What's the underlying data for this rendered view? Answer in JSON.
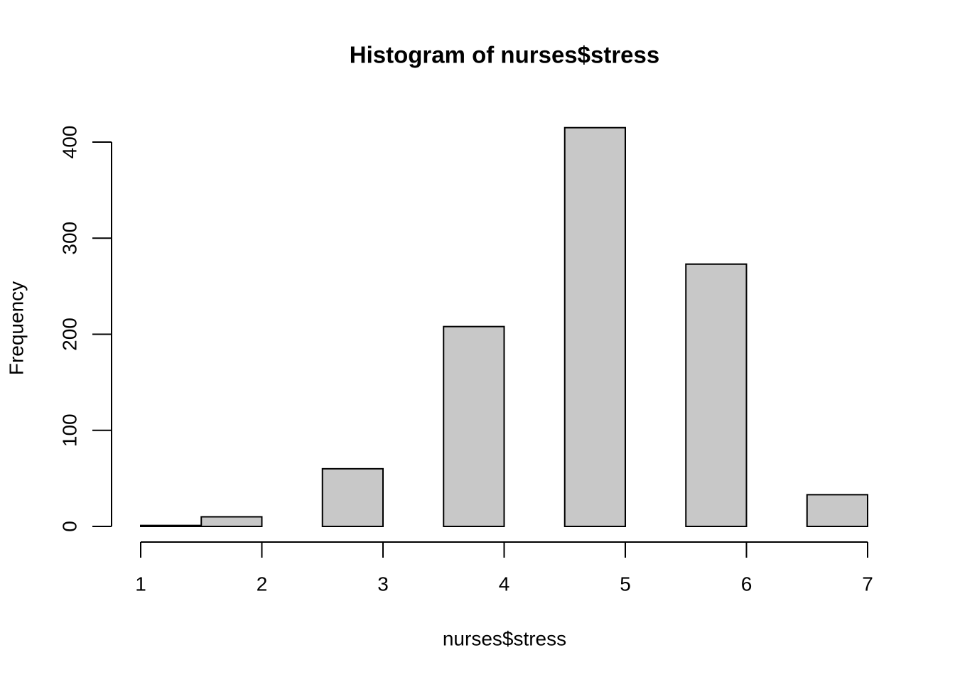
{
  "chart_data": {
    "type": "histogram",
    "title": "Histogram of nurses$stress",
    "x_label": "nurses$stress",
    "y_label": "Frequency",
    "bins": [
      1,
      1.5,
      2,
      2.5,
      3,
      3.5,
      4,
      4.5,
      5,
      5.5,
      6,
      6.5,
      7
    ],
    "values": [
      1,
      10,
      0,
      60,
      0,
      208,
      0,
      415,
      0,
      273,
      0,
      33
    ],
    "color": "#c8c8c8",
    "xlim": [
      1,
      7
    ],
    "xticks": [
      1,
      2,
      3,
      4,
      5,
      6,
      7
    ],
    "ylim": [
      0,
      400
    ],
    "yticks": [
      0,
      100,
      200,
      300,
      400
    ]
  }
}
